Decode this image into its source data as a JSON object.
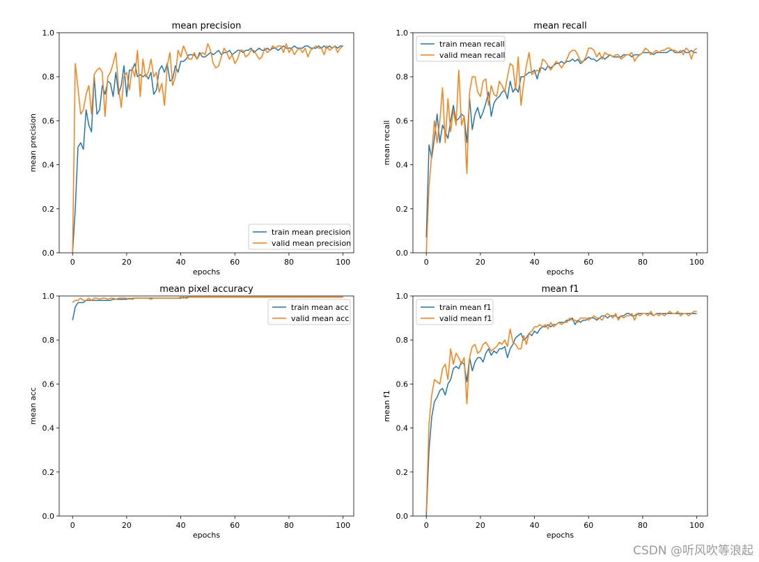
{
  "watermark": "CSDN @听风吹等浪起",
  "chart_data": [
    {
      "type": "line",
      "title": "mean precision",
      "xlabel": "epochs",
      "ylabel": "mean precision",
      "xlim": [
        -4.95,
        103.95
      ],
      "ylim": [
        0,
        1
      ],
      "xticks": [
        0,
        20,
        40,
        60,
        80,
        100
      ],
      "yticks": [
        0.0,
        0.2,
        0.4,
        0.6,
        0.8,
        1.0
      ],
      "legend_position": "lower-right",
      "series": [
        {
          "name": "train mean precision",
          "color": "#1f77b4",
          "values": [
            0.0,
            0.2,
            0.48,
            0.5,
            0.47,
            0.65,
            0.58,
            0.55,
            0.8,
            0.63,
            0.65,
            0.76,
            0.72,
            0.78,
            0.77,
            0.71,
            0.82,
            0.72,
            0.76,
            0.85,
            0.71,
            0.83,
            0.83,
            0.86,
            0.8,
            0.81,
            0.8,
            0.81,
            0.79,
            0.82,
            0.72,
            0.74,
            0.83,
            0.85,
            0.82,
            0.86,
            0.78,
            0.79,
            0.85,
            0.82,
            0.87,
            0.87,
            0.88,
            0.9,
            0.9,
            0.9,
            0.88,
            0.91,
            0.89,
            0.89,
            0.9,
            0.91,
            0.9,
            0.91,
            0.92,
            0.9,
            0.91,
            0.91,
            0.92,
            0.9,
            0.91,
            0.92,
            0.92,
            0.91,
            0.92,
            0.92,
            0.93,
            0.91,
            0.92,
            0.93,
            0.92,
            0.92,
            0.93,
            0.92,
            0.93,
            0.93,
            0.92,
            0.93,
            0.94,
            0.93,
            0.93,
            0.93,
            0.94,
            0.93,
            0.93,
            0.93,
            0.94,
            0.94,
            0.93,
            0.93,
            0.93,
            0.94,
            0.93,
            0.94,
            0.93,
            0.94,
            0.93,
            0.94,
            0.93,
            0.94,
            0.94
          ]
        },
        {
          "name": "valid mean precision",
          "color": "#ff7f0e",
          "values": [
            0.0,
            0.86,
            0.75,
            0.63,
            0.65,
            0.72,
            0.76,
            0.63,
            0.81,
            0.83,
            0.84,
            0.82,
            0.62,
            0.8,
            0.82,
            0.86,
            0.91,
            0.75,
            0.66,
            0.8,
            0.82,
            0.74,
            0.84,
            0.8,
            0.92,
            0.71,
            0.88,
            0.8,
            0.82,
            0.88,
            0.8,
            0.82,
            0.73,
            0.77,
            0.67,
            0.85,
            0.91,
            0.76,
            0.8,
            0.92,
            0.89,
            0.94,
            0.91,
            0.88,
            0.88,
            0.91,
            0.88,
            0.9,
            0.91,
            0.9,
            0.95,
            0.92,
            0.86,
            0.84,
            0.85,
            0.89,
            0.93,
            0.91,
            0.88,
            0.9,
            0.86,
            0.88,
            0.92,
            0.92,
            0.89,
            0.9,
            0.92,
            0.92,
            0.9,
            0.88,
            0.89,
            0.93,
            0.91,
            0.92,
            0.94,
            0.93,
            0.94,
            0.94,
            0.91,
            0.95,
            0.91,
            0.93,
            0.9,
            0.92,
            0.93,
            0.91,
            0.93,
            0.89,
            0.92,
            0.93,
            0.94,
            0.93,
            0.93,
            0.9,
            0.94,
            0.92,
            0.93,
            0.94,
            0.91,
            0.93,
            0.94
          ]
        }
      ]
    },
    {
      "type": "line",
      "title": "mean recall",
      "xlabel": "epochs",
      "ylabel": "mean recall",
      "xlim": [
        -4.95,
        103.95
      ],
      "ylim": [
        0,
        1
      ],
      "xticks": [
        0,
        20,
        40,
        60,
        80,
        100
      ],
      "yticks": [
        0.0,
        0.2,
        0.4,
        0.6,
        0.8,
        1.0
      ],
      "legend_position": "upper-left",
      "series": [
        {
          "name": "train mean recall",
          "color": "#1f77b4",
          "values": [
            0.07,
            0.49,
            0.43,
            0.52,
            0.63,
            0.5,
            0.58,
            0.55,
            0.52,
            0.6,
            0.67,
            0.6,
            0.61,
            0.63,
            0.62,
            0.5,
            0.7,
            0.56,
            0.63,
            0.66,
            0.61,
            0.64,
            0.68,
            0.73,
            0.62,
            0.68,
            0.7,
            0.71,
            0.73,
            0.74,
            0.7,
            0.78,
            0.73,
            0.75,
            0.73,
            0.8,
            0.8,
            0.81,
            0.82,
            0.82,
            0.83,
            0.79,
            0.84,
            0.84,
            0.83,
            0.85,
            0.84,
            0.85,
            0.86,
            0.86,
            0.87,
            0.86,
            0.87,
            0.87,
            0.88,
            0.87,
            0.88,
            0.86,
            0.87,
            0.88,
            0.89,
            0.88,
            0.88,
            0.87,
            0.88,
            0.89,
            0.88,
            0.89,
            0.9,
            0.89,
            0.89,
            0.89,
            0.89,
            0.9,
            0.9,
            0.9,
            0.89,
            0.9,
            0.9,
            0.9,
            0.91,
            0.91,
            0.91,
            0.91,
            0.9,
            0.91,
            0.91,
            0.91,
            0.91,
            0.91,
            0.92,
            0.92,
            0.91,
            0.91,
            0.91,
            0.92,
            0.91,
            0.91,
            0.92,
            0.91,
            0.91
          ]
        },
        {
          "name": "valid mean recall",
          "color": "#ff7f0e",
          "values": [
            0.0,
            0.3,
            0.45,
            0.6,
            0.5,
            0.6,
            0.75,
            0.5,
            0.7,
            0.55,
            0.65,
            0.58,
            0.83,
            0.58,
            0.62,
            0.36,
            0.73,
            0.8,
            0.8,
            0.73,
            0.71,
            0.78,
            0.79,
            0.67,
            0.76,
            0.72,
            0.71,
            0.78,
            0.76,
            0.73,
            0.8,
            0.86,
            0.85,
            0.74,
            0.89,
            0.67,
            0.77,
            0.85,
            0.91,
            0.81,
            0.82,
            0.83,
            0.82,
            0.88,
            0.87,
            0.85,
            0.83,
            0.85,
            0.87,
            0.86,
            0.84,
            0.86,
            0.88,
            0.91,
            0.92,
            0.92,
            0.9,
            0.87,
            0.87,
            0.89,
            0.93,
            0.93,
            0.92,
            0.89,
            0.91,
            0.88,
            0.91,
            0.9,
            0.9,
            0.89,
            0.9,
            0.9,
            0.88,
            0.89,
            0.9,
            0.9,
            0.91,
            0.87,
            0.89,
            0.9,
            0.91,
            0.93,
            0.92,
            0.9,
            0.91,
            0.92,
            0.91,
            0.92,
            0.92,
            0.93,
            0.93,
            0.92,
            0.92,
            0.91,
            0.92,
            0.9,
            0.93,
            0.92,
            0.88,
            0.92,
            0.93
          ]
        }
      ]
    },
    {
      "type": "line",
      "title": "mean pixel accuracy",
      "xlabel": "epochs",
      "ylabel": "mean acc",
      "xlim": [
        -4.95,
        103.95
      ],
      "ylim": [
        0,
        1
      ],
      "xticks": [
        0,
        20,
        40,
        60,
        80,
        100
      ],
      "yticks": [
        0.0,
        0.2,
        0.4,
        0.6,
        0.8,
        1.0
      ],
      "legend_position": "upper-right",
      "series": [
        {
          "name": "train mean acc",
          "color": "#1f77b4",
          "values": [
            0.89,
            0.95,
            0.97,
            0.97,
            0.97,
            0.98,
            0.98,
            0.98,
            0.98,
            0.98,
            0.98,
            0.98,
            0.98,
            0.98,
            0.98,
            0.985,
            0.985,
            0.985,
            0.985,
            0.985,
            0.985,
            0.99,
            0.985,
            0.99,
            0.99,
            0.99,
            0.99,
            0.99,
            0.99,
            0.99,
            0.99,
            0.99,
            0.99,
            0.99,
            0.99,
            0.99,
            0.99,
            0.99,
            0.99,
            0.99,
            0.99,
            0.995,
            0.99,
            0.995,
            0.995,
            0.995,
            0.995,
            0.995,
            0.995,
            0.995,
            0.995,
            0.995,
            0.995,
            0.995,
            0.995,
            0.995,
            0.995,
            0.995,
            0.995,
            0.995,
            0.995,
            0.995,
            0.995,
            0.995,
            0.995,
            0.995,
            0.995,
            0.995,
            0.995,
            0.995,
            0.995,
            0.995,
            0.995,
            0.995,
            0.995,
            0.995,
            0.995,
            0.995,
            0.995,
            0.995,
            0.995,
            0.995,
            0.995,
            0.995,
            0.995,
            0.995,
            0.995,
            0.995,
            0.995,
            0.995,
            0.995,
            0.995,
            0.995,
            0.995,
            0.995,
            0.995,
            0.995,
            0.995,
            0.995,
            0.995,
            0.995
          ]
        },
        {
          "name": "valid mean acc",
          "color": "#ff7f0e",
          "values": [
            0.97,
            0.98,
            0.98,
            0.99,
            0.98,
            0.98,
            0.99,
            0.98,
            0.99,
            0.99,
            0.985,
            0.99,
            0.99,
            0.985,
            0.99,
            0.99,
            0.985,
            0.99,
            0.99,
            0.99,
            0.99,
            0.985,
            0.99,
            0.99,
            0.99,
            0.99,
            0.99,
            0.99,
            0.99,
            0.985,
            0.99,
            0.99,
            0.99,
            0.99,
            0.99,
            0.99,
            0.99,
            0.99,
            0.99,
            0.99,
            0.995,
            0.99,
            0.995,
            0.995,
            0.995,
            0.995,
            0.995,
            0.995,
            0.995,
            0.995,
            0.995,
            0.995,
            0.995,
            0.995,
            0.995,
            0.995,
            0.995,
            0.995,
            0.995,
            0.995,
            0.995,
            0.995,
            0.995,
            0.995,
            0.995,
            0.995,
            0.995,
            0.995,
            0.995,
            0.995,
            0.995,
            0.995,
            0.995,
            0.995,
            0.995,
            0.995,
            0.995,
            0.995,
            0.995,
            0.995,
            0.995,
            0.995,
            0.995,
            0.995,
            0.995,
            0.995,
            0.995,
            0.995,
            0.995,
            0.995,
            0.995,
            0.995,
            0.995,
            0.995,
            0.995,
            0.995,
            0.995,
            0.995,
            0.995,
            0.995,
            0.995
          ]
        }
      ]
    },
    {
      "type": "line",
      "title": "mean f1",
      "xlabel": "epochs",
      "ylabel": "mean f1",
      "xlim": [
        -4.95,
        103.95
      ],
      "ylim": [
        0,
        1
      ],
      "xticks": [
        0,
        20,
        40,
        60,
        80,
        100
      ],
      "yticks": [
        0.0,
        0.2,
        0.4,
        0.6,
        0.8,
        1.0
      ],
      "legend_position": "upper-left",
      "series": [
        {
          "name": "train mean f1",
          "color": "#1f77b4",
          "values": [
            0.0,
            0.3,
            0.45,
            0.52,
            0.54,
            0.57,
            0.58,
            0.55,
            0.6,
            0.62,
            0.67,
            0.68,
            0.67,
            0.7,
            0.69,
            0.61,
            0.72,
            0.66,
            0.7,
            0.72,
            0.72,
            0.7,
            0.74,
            0.76,
            0.73,
            0.75,
            0.74,
            0.76,
            0.76,
            0.77,
            0.72,
            0.76,
            0.78,
            0.81,
            0.82,
            0.83,
            0.8,
            0.81,
            0.83,
            0.82,
            0.84,
            0.83,
            0.85,
            0.86,
            0.86,
            0.87,
            0.86,
            0.87,
            0.87,
            0.88,
            0.88,
            0.88,
            0.89,
            0.89,
            0.9,
            0.87,
            0.89,
            0.88,
            0.89,
            0.89,
            0.9,
            0.9,
            0.9,
            0.89,
            0.9,
            0.91,
            0.91,
            0.9,
            0.91,
            0.91,
            0.91,
            0.9,
            0.91,
            0.91,
            0.92,
            0.92,
            0.91,
            0.91,
            0.92,
            0.92,
            0.92,
            0.92,
            0.92,
            0.92,
            0.91,
            0.92,
            0.92,
            0.92,
            0.92,
            0.92,
            0.92,
            0.92,
            0.92,
            0.92,
            0.92,
            0.92,
            0.92,
            0.92,
            0.92,
            0.92,
            0.92
          ]
        },
        {
          "name": "valid mean f1",
          "color": "#ff7f0e",
          "values": [
            0.02,
            0.42,
            0.55,
            0.62,
            0.61,
            0.6,
            0.67,
            0.69,
            0.62,
            0.76,
            0.69,
            0.74,
            0.72,
            0.69,
            0.72,
            0.51,
            0.72,
            0.77,
            0.78,
            0.74,
            0.75,
            0.78,
            0.79,
            0.77,
            0.75,
            0.76,
            0.77,
            0.79,
            0.78,
            0.8,
            0.77,
            0.85,
            0.79,
            0.78,
            0.76,
            0.76,
            0.82,
            0.78,
            0.83,
            0.84,
            0.86,
            0.86,
            0.87,
            0.86,
            0.87,
            0.85,
            0.88,
            0.86,
            0.87,
            0.88,
            0.87,
            0.88,
            0.88,
            0.9,
            0.89,
            0.89,
            0.88,
            0.9,
            0.9,
            0.9,
            0.89,
            0.9,
            0.91,
            0.9,
            0.9,
            0.89,
            0.91,
            0.92,
            0.91,
            0.9,
            0.92,
            0.89,
            0.91,
            0.9,
            0.91,
            0.91,
            0.92,
            0.89,
            0.92,
            0.91,
            0.92,
            0.92,
            0.91,
            0.93,
            0.91,
            0.92,
            0.91,
            0.92,
            0.91,
            0.92,
            0.93,
            0.92,
            0.92,
            0.93,
            0.91,
            0.92,
            0.92,
            0.91,
            0.92,
            0.93,
            0.93
          ]
        }
      ]
    }
  ]
}
